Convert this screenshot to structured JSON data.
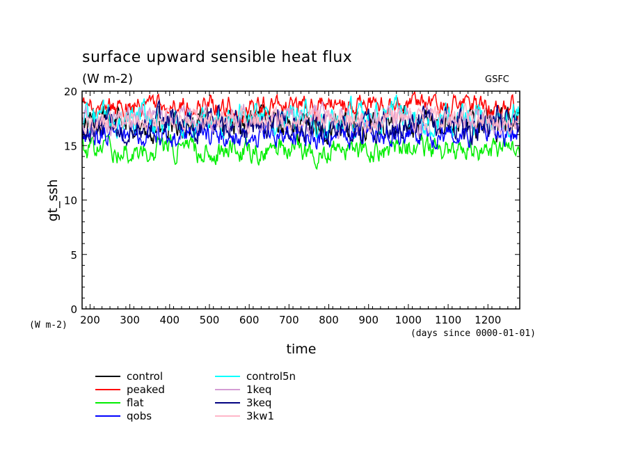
{
  "chart_data": {
    "type": "line",
    "title": "surface upward sensible heat flux",
    "units": "(W m-2)",
    "source_label": "GSFC",
    "ylabel": "gt_ssh",
    "y_units_label": "(W m-2)",
    "xlabel": "time",
    "x_units_label": "(days since 0000-01-01)",
    "xlim": [
      180,
      1280
    ],
    "ylim": [
      0,
      20
    ],
    "x_ticks": [
      200,
      300,
      400,
      500,
      600,
      700,
      800,
      900,
      1000,
      1100,
      1200
    ],
    "y_ticks": [
      0,
      5,
      10,
      15,
      20
    ],
    "grid": false,
    "legend_position": "bottom-left",
    "series": [
      {
        "name": "control",
        "color": "#000000",
        "mean": 17.0,
        "amplitude": 1.3
      },
      {
        "name": "peaked",
        "color": "#ff0000",
        "mean": 18.6,
        "amplitude": 0.9
      },
      {
        "name": "flat",
        "color": "#00ee00",
        "mean": 14.6,
        "amplitude": 1.0
      },
      {
        "name": "qobs",
        "color": "#0000ff",
        "mean": 16.0,
        "amplitude": 1.0
      },
      {
        "name": "control5n",
        "color": "#00ffff",
        "mean": 17.5,
        "amplitude": 1.3
      },
      {
        "name": "1keq",
        "color": "#d49cd4",
        "mean": 17.3,
        "amplitude": 1.1
      },
      {
        "name": "3keq",
        "color": "#000080",
        "mean": 16.9,
        "amplitude": 1.2
      },
      {
        "name": "3kw1",
        "color": "#ffb6c8",
        "mean": 17.4,
        "amplitude": 0.9
      }
    ]
  }
}
